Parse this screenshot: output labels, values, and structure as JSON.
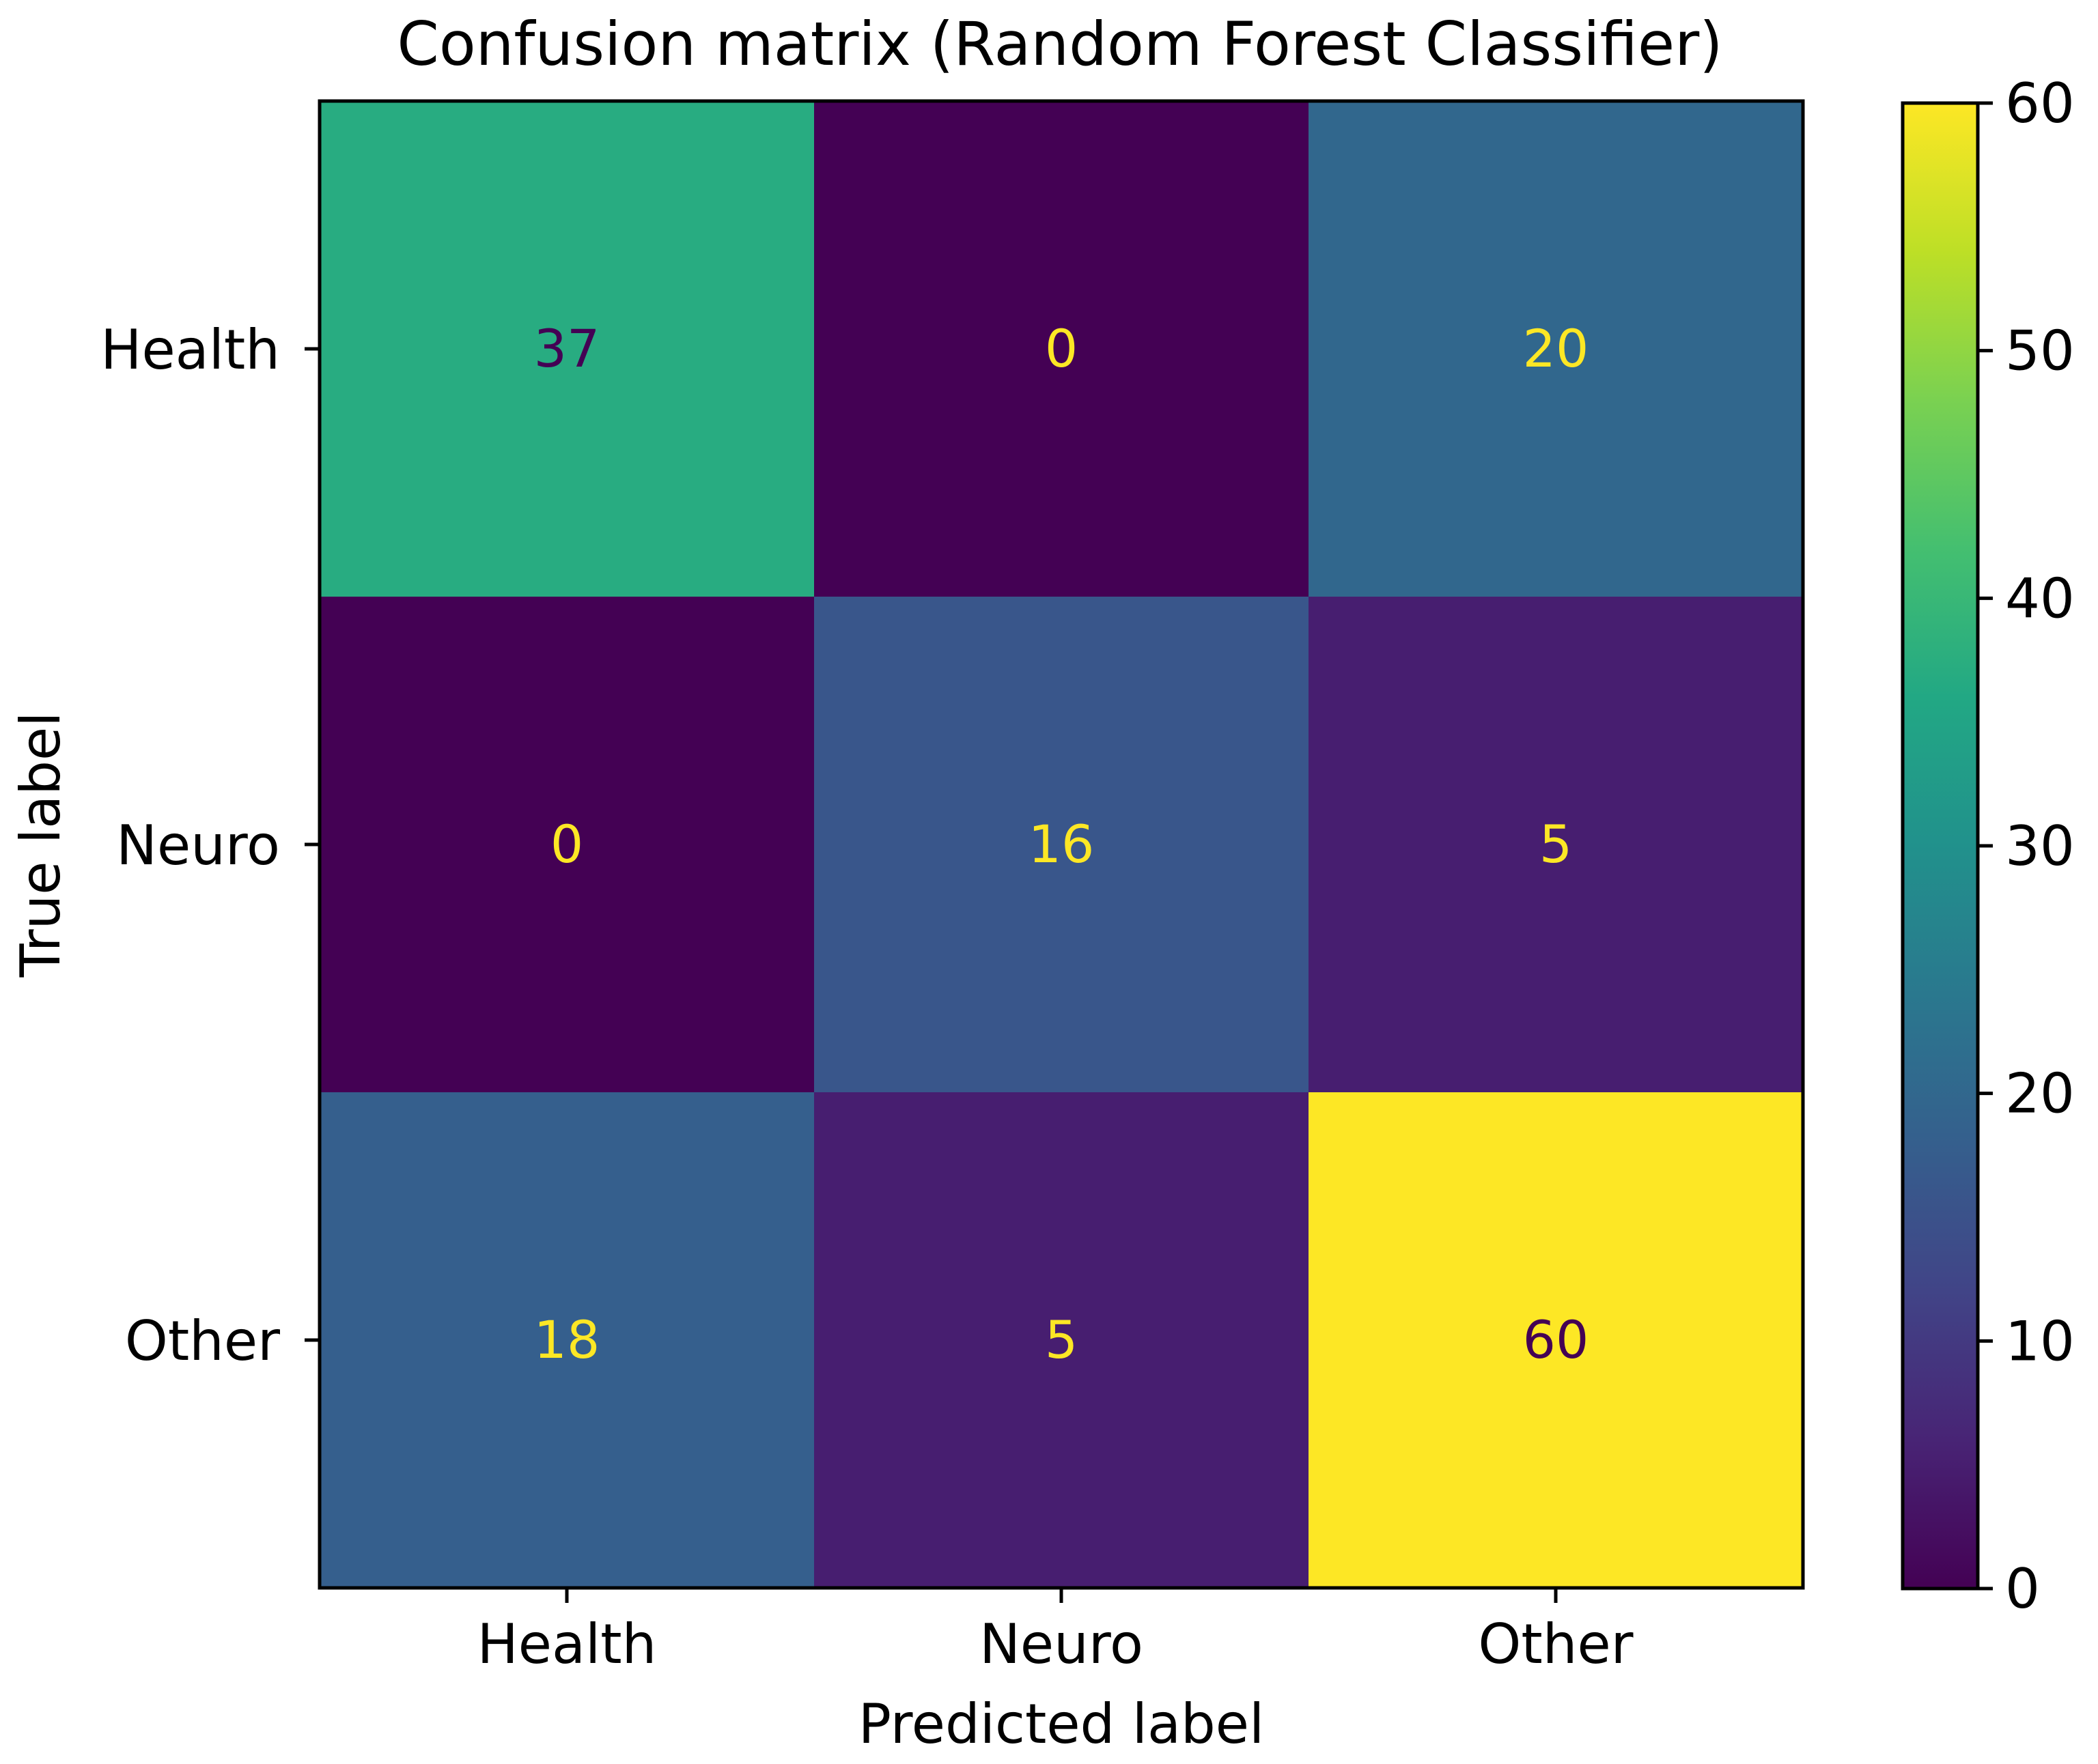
{
  "chart_data": {
    "type": "heatmap",
    "title": "Confusion matrix (Random Forest Classifier)",
    "xlabel": "Predicted label",
    "ylabel": "True label",
    "x_categories": [
      "Health",
      "Neuro",
      "Other"
    ],
    "y_categories": [
      "Health",
      "Neuro",
      "Other"
    ],
    "values": [
      [
        37,
        0,
        20
      ],
      [
        0,
        16,
        5
      ],
      [
        18,
        5,
        60
      ]
    ],
    "colormap": "viridis",
    "colorbar": {
      "range": [
        0,
        60
      ],
      "ticks": [
        0,
        10,
        20,
        30,
        40,
        50,
        60
      ]
    },
    "colors": {
      "text_on_dark": "#fde725",
      "text_on_light": "#440154",
      "axis": "#000000"
    }
  }
}
